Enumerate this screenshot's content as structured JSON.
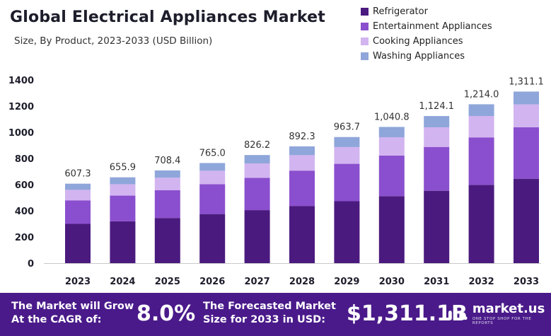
{
  "header": {
    "title": "Global Electrical Appliances Market",
    "subtitle": "Size, By Product, 2023-2033 (USD Billion)"
  },
  "legend": [
    {
      "label": "Refrigerator",
      "color": "#4b1a7e"
    },
    {
      "label": "Entertainment Appliances",
      "color": "#8a4fce"
    },
    {
      "label": "Cooking Appliances",
      "color": "#d2b4f0"
    },
    {
      "label": "Washing Appliances",
      "color": "#8fa6da"
    }
  ],
  "chart_data": {
    "type": "bar",
    "stacked": true,
    "categories": [
      "2023",
      "2024",
      "2025",
      "2026",
      "2027",
      "2028",
      "2029",
      "2030",
      "2031",
      "2032",
      "2033"
    ],
    "totals": [
      607.3,
      655.9,
      708.4,
      765.0,
      826.2,
      892.3,
      963.7,
      1040.8,
      1124.1,
      1214.0,
      1311.1
    ],
    "total_labels": [
      "607.3",
      "655.9",
      "708.4",
      "765.0",
      "826.2",
      "892.3",
      "963.7",
      "1,040.8",
      "1,124.1",
      "1,214.0",
      "1,311.1"
    ],
    "series": [
      {
        "name": "Refrigerator",
        "color": "#4b1a7e",
        "values": [
          300,
          320,
          345,
          375,
          405,
          437,
          473,
          512,
          553,
          598,
          645
        ]
      },
      {
        "name": "Entertainment Appliances",
        "color": "#8a4fce",
        "values": [
          180,
          196,
          213,
          228,
          247,
          270,
          286,
          310,
          335,
          363,
          393
        ]
      },
      {
        "name": "Cooking Appliances",
        "color": "#d2b4f0",
        "values": [
          80,
          87,
          95,
          103,
          110,
          118,
          128,
          140,
          150,
          163,
          175
        ]
      },
      {
        "name": "Washing Appliances",
        "color": "#8fa6da",
        "values": [
          47.3,
          52.9,
          55.4,
          59.0,
          64.2,
          67.3,
          76.7,
          78.8,
          86.1,
          90.0,
          98.1
        ]
      }
    ],
    "ylim": [
      0,
      1400
    ],
    "yticks": [
      0,
      200,
      400,
      600,
      800,
      1000,
      1200,
      1400
    ],
    "grid": false,
    "legend_position": "top-right"
  },
  "footer": {
    "cagr_label": "The Market will Grow At the CAGR of:",
    "cagr_value": "8.0%",
    "forecast_label": "The Forecasted Market Size for 2033 in USD:",
    "forecast_value": "$1,311.1B",
    "brand": "market.us",
    "brand_tagline": "ONE STOP SHOP FOR THE REPORTS"
  }
}
